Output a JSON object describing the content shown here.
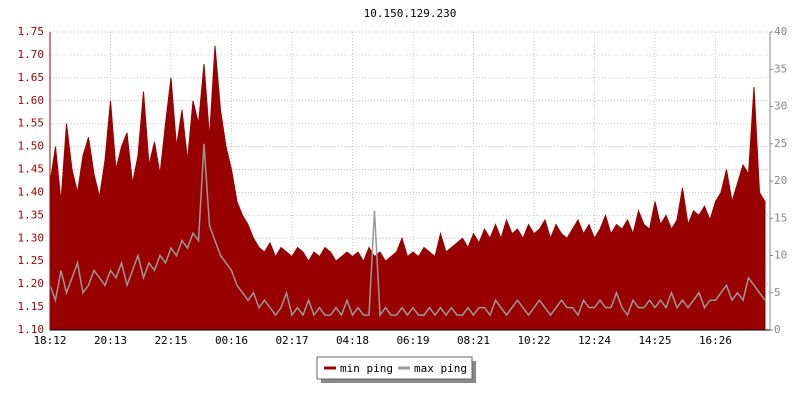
{
  "chart_data": {
    "type": "area",
    "title": "10.150.129.230",
    "categories": [
      "18:12",
      null,
      null,
      null,
      null,
      null,
      null,
      null,
      null,
      null,
      null,
      "20:13",
      null,
      null,
      null,
      null,
      null,
      null,
      null,
      null,
      null,
      null,
      "22:15",
      null,
      null,
      null,
      null,
      null,
      null,
      null,
      null,
      null,
      null,
      "00:16",
      null,
      null,
      null,
      null,
      null,
      null,
      null,
      null,
      null,
      null,
      "02:17",
      null,
      null,
      null,
      null,
      null,
      null,
      null,
      null,
      null,
      null,
      "04:18",
      null,
      null,
      null,
      null,
      null,
      null,
      null,
      null,
      null,
      null,
      "06:19",
      null,
      null,
      null,
      null,
      null,
      null,
      null,
      null,
      null,
      null,
      "08:21",
      null,
      null,
      null,
      null,
      null,
      null,
      null,
      null,
      null,
      null,
      "10:22",
      null,
      null,
      null,
      null,
      null,
      null,
      null,
      null,
      null,
      null,
      "12:24",
      null,
      null,
      null,
      null,
      null,
      null,
      null,
      null,
      null,
      null,
      "14:25",
      null,
      null,
      null,
      null,
      null,
      null,
      null,
      null,
      null,
      null,
      "16:26",
      null,
      null,
      null,
      null,
      null,
      null,
      null,
      null,
      null
    ],
    "series": [
      {
        "name": "min ping",
        "color": "#990000",
        "values": [
          1.42,
          1.5,
          1.38,
          1.55,
          1.45,
          1.4,
          1.48,
          1.52,
          1.44,
          1.39,
          1.47,
          1.6,
          1.45,
          1.5,
          1.53,
          1.42,
          1.48,
          1.62,
          1.46,
          1.51,
          1.44,
          1.55,
          1.65,
          1.5,
          1.58,
          1.47,
          1.6,
          1.55,
          1.68,
          1.52,
          1.72,
          1.58,
          1.5,
          1.45,
          1.38,
          1.35,
          1.33,
          1.3,
          1.28,
          1.27,
          1.29,
          1.26,
          1.28,
          1.27,
          1.26,
          1.28,
          1.27,
          1.25,
          1.27,
          1.26,
          1.28,
          1.27,
          1.25,
          1.26,
          1.27,
          1.26,
          1.27,
          1.25,
          1.28,
          1.26,
          1.27,
          1.25,
          1.26,
          1.27,
          1.3,
          1.26,
          1.27,
          1.26,
          1.28,
          1.27,
          1.26,
          1.31,
          1.27,
          1.28,
          1.29,
          1.3,
          1.28,
          1.31,
          1.29,
          1.32,
          1.3,
          1.33,
          1.3,
          1.34,
          1.31,
          1.32,
          1.3,
          1.33,
          1.31,
          1.32,
          1.34,
          1.3,
          1.33,
          1.31,
          1.3,
          1.32,
          1.34,
          1.31,
          1.33,
          1.3,
          1.32,
          1.35,
          1.31,
          1.33,
          1.32,
          1.34,
          1.31,
          1.36,
          1.33,
          1.32,
          1.38,
          1.33,
          1.35,
          1.32,
          1.34,
          1.41,
          1.33,
          1.36,
          1.35,
          1.37,
          1.34,
          1.38,
          1.4,
          1.45,
          1.38,
          1.42,
          1.46,
          1.44,
          1.63,
          1.4,
          1.38
        ]
      },
      {
        "name": "max ping",
        "color": "#999999",
        "axis": "y2",
        "values": [
          6,
          4,
          8,
          5,
          7,
          9,
          5,
          6,
          8,
          7,
          6,
          8,
          7,
          9,
          6,
          8,
          10,
          7,
          9,
          8,
          10,
          9,
          11,
          10,
          12,
          11,
          13,
          12,
          25,
          14,
          12,
          10,
          9,
          8,
          6,
          5,
          4,
          5,
          3,
          4,
          3,
          2,
          3,
          5,
          2,
          3,
          2,
          4,
          2,
          3,
          2,
          2,
          3,
          2,
          4,
          2,
          3,
          2,
          2,
          16,
          2,
          3,
          2,
          2,
          3,
          2,
          3,
          2,
          2,
          3,
          2,
          3,
          2,
          3,
          2,
          2,
          3,
          2,
          3,
          3,
          2,
          4,
          3,
          2,
          3,
          4,
          3,
          2,
          3,
          4,
          3,
          2,
          3,
          4,
          3,
          3,
          2,
          4,
          3,
          3,
          4,
          3,
          3,
          5,
          3,
          2,
          4,
          3,
          3,
          4,
          3,
          4,
          3,
          5,
          3,
          4,
          3,
          4,
          5,
          3,
          4,
          4,
          5,
          6,
          4,
          5,
          4,
          7,
          6,
          5,
          4
        ]
      }
    ],
    "ylim": [
      1.1,
      1.75
    ],
    "yticks": [
      {
        "value": 1.1,
        "label": "1.10"
      },
      1.15,
      {
        "value": 1.2,
        "label": "1.20"
      },
      1.25,
      {
        "value": 1.3,
        "label": "1.30"
      },
      1.35,
      {
        "value": 1.4,
        "label": "1.40"
      },
      1.45,
      {
        "value": 1.5,
        "label": "1.50"
      },
      1.55,
      {
        "value": 1.6,
        "label": "1.60"
      },
      1.65,
      {
        "value": 1.7,
        "label": "1.70"
      },
      1.75
    ],
    "y2lim": [
      0,
      40
    ],
    "y2ticks": [
      0,
      5,
      10,
      15,
      20,
      25,
      30,
      35,
      40
    ],
    "grid": true,
    "legend": "bottom"
  }
}
